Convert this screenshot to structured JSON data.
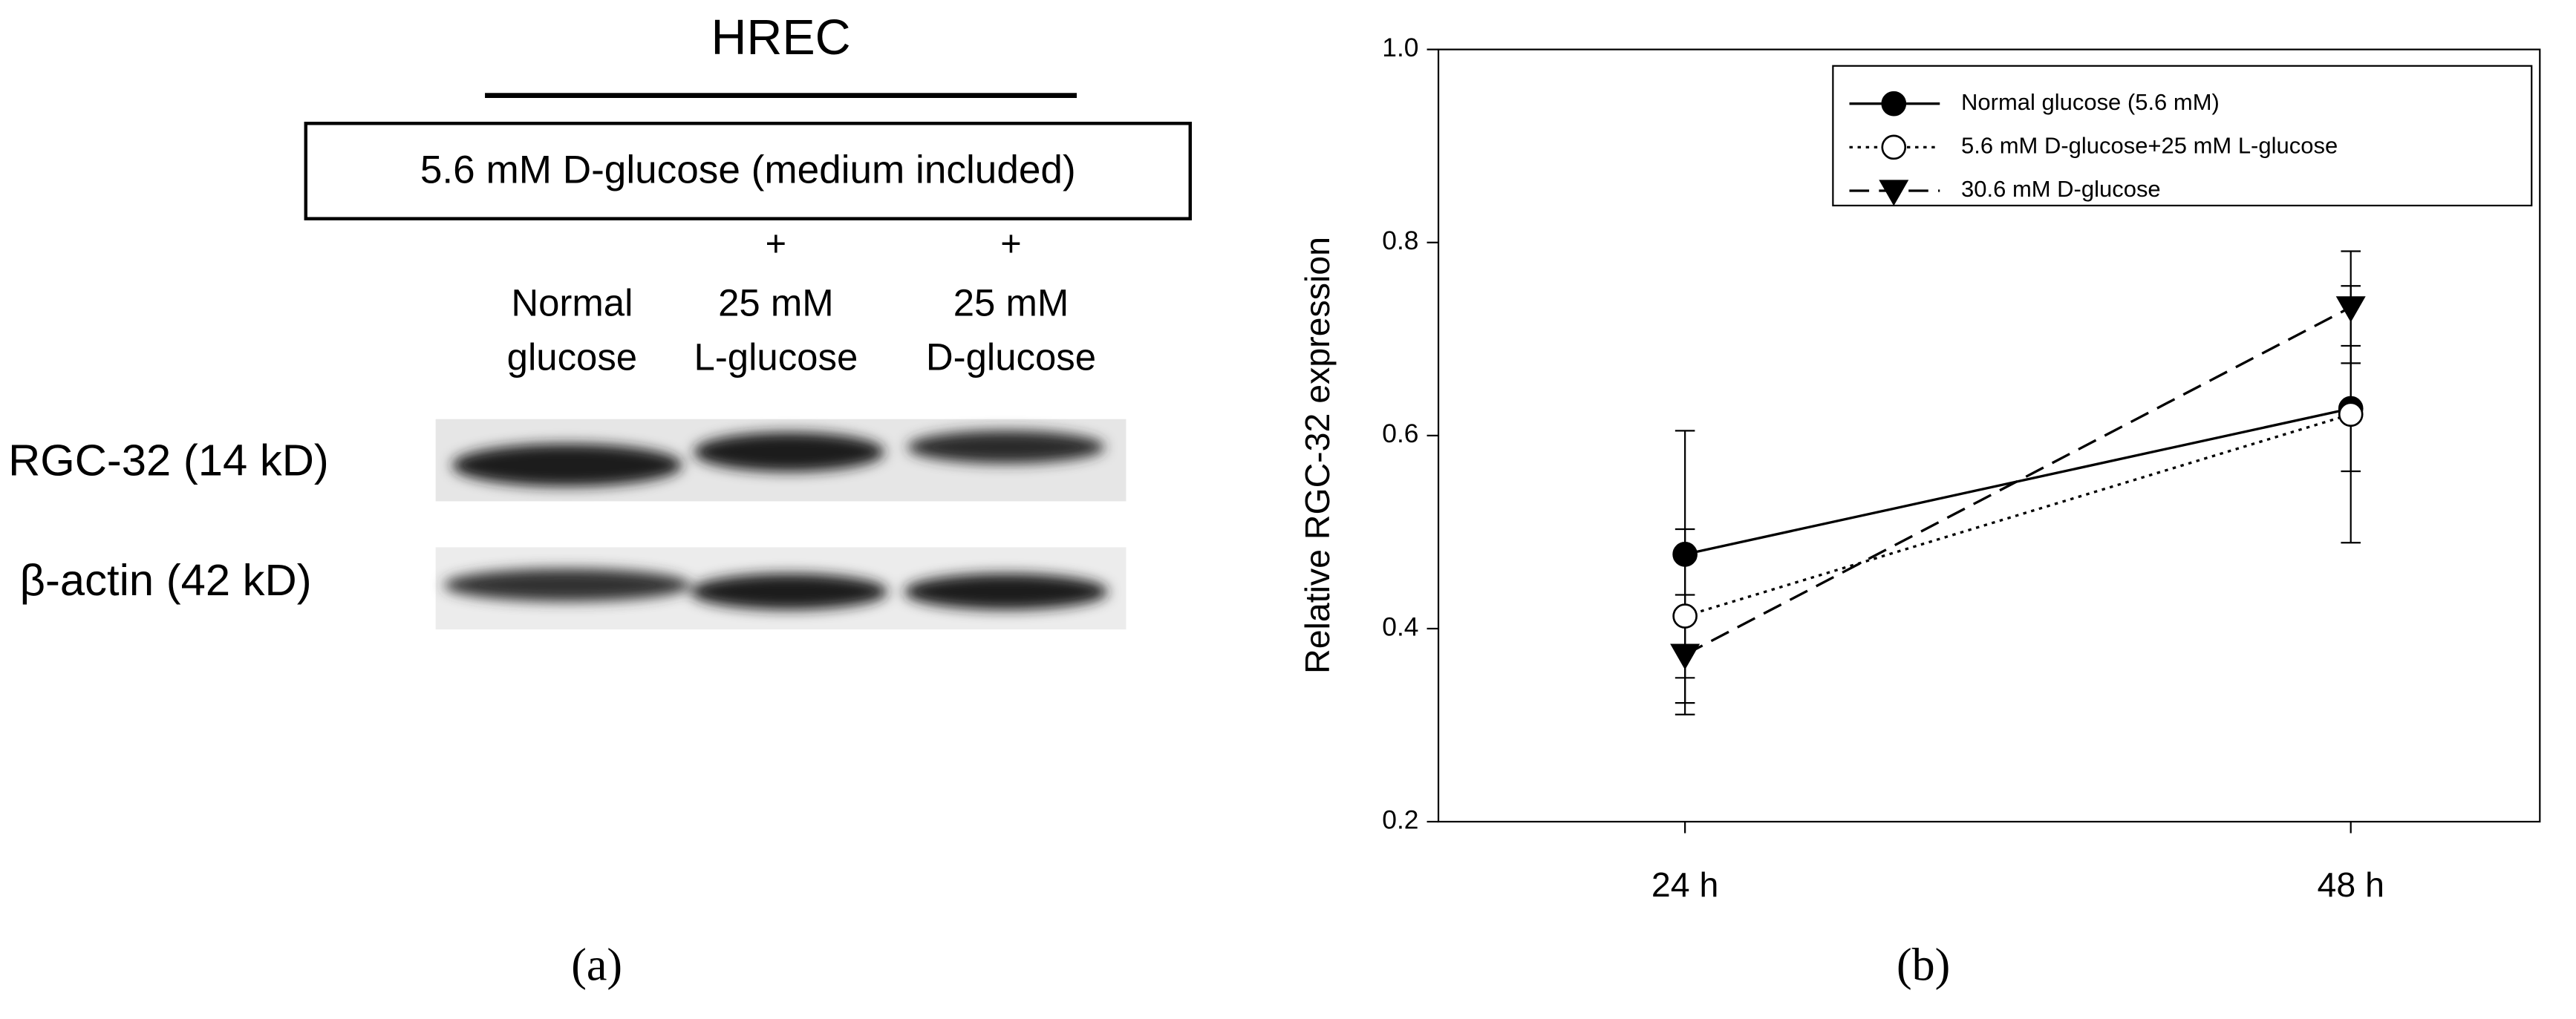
{
  "panel_a": {
    "title": "HREC",
    "box": "5.6 mM D-glucose (medium included)",
    "lanes": [
      {
        "label": [
          "Normal",
          "glucose"
        ]
      },
      {
        "plus": "+",
        "label": [
          "25 mM",
          "L-glucose"
        ]
      },
      {
        "plus": "+",
        "label": [
          "25 mM",
          "D-glucose"
        ]
      }
    ],
    "rows": [
      "RGC-32 (14 kD)",
      "β-actin (42 kD)"
    ],
    "caption": "(a)"
  },
  "panel_b": {
    "caption": "(b)"
  },
  "chart_data": {
    "type": "line",
    "ylabel": "Relative RGC-32 expression",
    "categories": [
      "24 h",
      "48 h"
    ],
    "ylim": [
      0.2,
      1.0
    ],
    "yticks": [
      0.2,
      0.4,
      0.6,
      0.8,
      {
        "value": 1.0,
        "label": "1.0"
      }
    ],
    "legend": "upper right",
    "series": [
      {
        "name": "Normal glucose (5.6 mM)",
        "color": "#000000",
        "marker": "circle",
        "filled": true,
        "dash": "solid",
        "values": [
          0.477,
          0.628
        ],
        "errors": [
          0.128,
          0.065
        ]
      },
      {
        "name": "5.6 mM D-glucose+25 mM L-glucose",
        "color": "#000000",
        "marker": "circle",
        "filled": false,
        "dash": "dotted",
        "values": [
          0.413,
          0.622
        ],
        "errors": [
          0.09,
          0.133
        ]
      },
      {
        "name": "30.6 mM D-glucose",
        "color": "#000000",
        "marker": "triangle-down",
        "filled": true,
        "dash": "dashed",
        "values": [
          0.373,
          0.733
        ],
        "errors": [
          0.062,
          0.058
        ]
      }
    ]
  }
}
